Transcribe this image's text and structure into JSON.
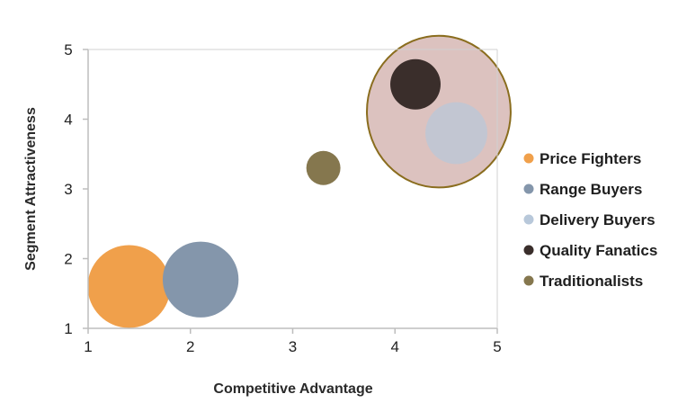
{
  "chart_data": {
    "type": "bubble",
    "title": "",
    "xlabel": "Competitive Advantage",
    "ylabel": "Segment Attractiveness",
    "xlim": [
      1,
      5
    ],
    "ylim": [
      1,
      5
    ],
    "xticks": [
      1,
      2,
      3,
      4,
      5
    ],
    "yticks": [
      1,
      2,
      3,
      4,
      5
    ],
    "grid": false,
    "legend_position": "right",
    "series": [
      {
        "name": "Price Fighters",
        "x": 1.4,
        "y": 1.6,
        "size": 1.0,
        "color": "#f0a04b"
      },
      {
        "name": "Range Buyers",
        "x": 2.1,
        "y": 1.7,
        "size": 0.84,
        "color": "#8496ab"
      },
      {
        "name": "Delivery Buyers",
        "x": 4.6,
        "y": 3.8,
        "size": 0.56,
        "color": "#b8c8da"
      },
      {
        "name": "Quality Fanatics",
        "x": 4.2,
        "y": 4.5,
        "size": 0.37,
        "color": "#3a2e2b"
      },
      {
        "name": "Traditionalists",
        "x": 3.3,
        "y": 3.3,
        "size": 0.17,
        "color": "#85774e"
      }
    ],
    "highlight": {
      "label": "",
      "members": [
        "Quality Fanatics",
        "Delivery Buyers"
      ],
      "fill": "#c49a94",
      "fill_opacity": 0.6,
      "stroke": "#8a6d1e"
    }
  }
}
